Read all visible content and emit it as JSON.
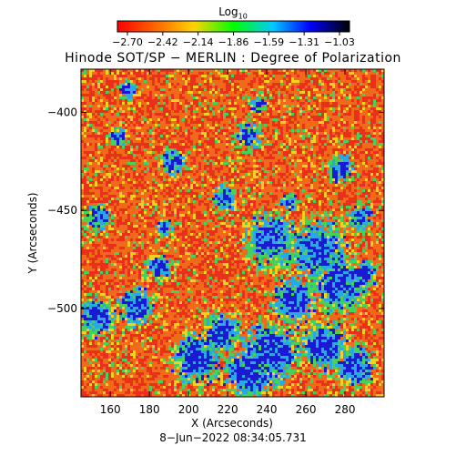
{
  "colorbar": {
    "title_main": "Log",
    "title_sub": "10",
    "tick_labels": [
      "−2.70",
      "−2.42",
      "−2.14",
      "−1.86",
      "−1.59",
      "−1.31",
      "−1.03"
    ],
    "range": [
      -2.7,
      -1.03
    ],
    "colormap": [
      "#ff0000",
      "#ff6a00",
      "#ffd400",
      "#00ff00",
      "#00c8ff",
      "#0000ff",
      "#000000"
    ]
  },
  "title": "Hinode SOT/SP − MERLIN : Degree of Polarization",
  "map": {
    "x_axis_label": "X (Arcseconds)",
    "y_axis_label": "Y (Arcseconds)",
    "x_ticks": [
      "160",
      "180",
      "200",
      "220",
      "240",
      "260",
      "280"
    ],
    "y_ticks": [
      "−400",
      "−450",
      "−500"
    ],
    "x_range": [
      145,
      300
    ],
    "y_range": [
      -545,
      -378
    ]
  },
  "timestamp": "8−Jun−2022 08:34:05.731",
  "colors": {
    "background": "#ffffff",
    "map_base": "#f06a1a",
    "map_red": "#e8301a",
    "map_yellow": "#f2d21e",
    "map_green": "#46d25a",
    "map_cyan": "#2aa8e6",
    "map_blue": "#1a1ad2"
  }
}
